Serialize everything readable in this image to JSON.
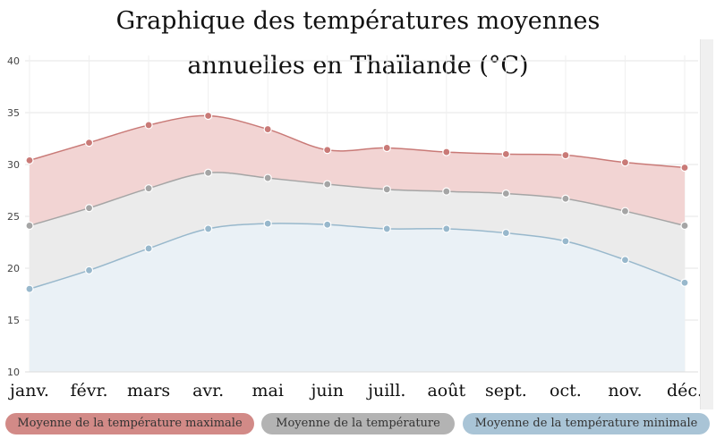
{
  "chart_data": {
    "type": "area",
    "title_lines": [
      "Graphique des températures moyennes",
      "annuelles en Thaïlande (°C)"
    ],
    "categories": [
      "janv.",
      "févr.",
      "mars",
      "avr.",
      "mai",
      "juin",
      "juill.",
      "août",
      "sept.",
      "oct.",
      "nov.",
      "déc."
    ],
    "ylim": [
      10,
      40
    ],
    "yticks": [
      "40",
      "35",
      "30",
      "25",
      "20",
      "15",
      "10"
    ],
    "grid": true,
    "legend_position": "bottom",
    "series": [
      {
        "name": "Moyenne de la température maximale",
        "color": "#c97a77",
        "fill": "#f2d4d3",
        "values": [
          30.4,
          32.1,
          33.8,
          34.7,
          33.4,
          31.4,
          31.6,
          31.2,
          31.0,
          30.9,
          30.2,
          29.7
        ]
      },
      {
        "name": "Moyenne de la température",
        "color": "#a5a5a5",
        "fill": "#ebebeb",
        "values": [
          24.1,
          25.8,
          27.7,
          29.2,
          28.7,
          28.1,
          27.6,
          27.4,
          27.2,
          26.7,
          25.5,
          24.1
        ]
      },
      {
        "name": "Moyenne de la température minimale",
        "color": "#98b8cc",
        "fill": "#eaf1f6",
        "values": [
          18.0,
          19.8,
          21.9,
          23.8,
          24.3,
          24.2,
          23.8,
          23.8,
          23.4,
          22.6,
          20.8,
          18.6
        ]
      }
    ]
  }
}
